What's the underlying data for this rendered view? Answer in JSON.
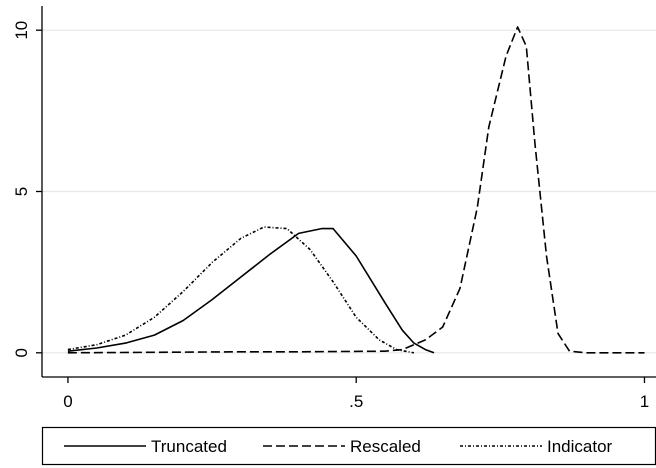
{
  "chart_data": {
    "type": "line",
    "title": "",
    "xlabel": "",
    "ylabel": "",
    "xlim": [
      -0.045,
      1.02
    ],
    "ylim": [
      -0.75,
      10.75
    ],
    "xticks": [
      {
        "value": 0,
        "label": "0"
      },
      {
        "value": 0.5,
        "label": ".5"
      },
      {
        "value": 1,
        "label": "1"
      }
    ],
    "yticks": [
      {
        "value": 0,
        "label": "0"
      },
      {
        "value": 5,
        "label": "5"
      },
      {
        "value": 10,
        "label": "10"
      }
    ],
    "grid": true,
    "legend_position": "bottom",
    "series": [
      {
        "name": "Truncated",
        "style": "solid",
        "color": "#000000",
        "points": [
          [
            0.0,
            0.05
          ],
          [
            0.05,
            0.15
          ],
          [
            0.1,
            0.3
          ],
          [
            0.15,
            0.55
          ],
          [
            0.2,
            1.0
          ],
          [
            0.25,
            1.65
          ],
          [
            0.3,
            2.35
          ],
          [
            0.35,
            3.05
          ],
          [
            0.4,
            3.7
          ],
          [
            0.44,
            3.85
          ],
          [
            0.46,
            3.85
          ],
          [
            0.5,
            3.0
          ],
          [
            0.55,
            1.55
          ],
          [
            0.58,
            0.7
          ],
          [
            0.6,
            0.3
          ],
          [
            0.62,
            0.1
          ],
          [
            0.635,
            0.0
          ]
        ]
      },
      {
        "name": "Rescaled",
        "style": "dash",
        "color": "#000000",
        "points": [
          [
            0.0,
            0.0
          ],
          [
            0.3,
            0.03
          ],
          [
            0.4,
            0.03
          ],
          [
            0.55,
            0.05
          ],
          [
            0.58,
            0.1
          ],
          [
            0.62,
            0.4
          ],
          [
            0.65,
            0.8
          ],
          [
            0.68,
            2.0
          ],
          [
            0.71,
            4.5
          ],
          [
            0.73,
            7.0
          ],
          [
            0.76,
            9.2
          ],
          [
            0.78,
            10.1
          ],
          [
            0.795,
            9.5
          ],
          [
            0.81,
            6.5
          ],
          [
            0.83,
            3.0
          ],
          [
            0.85,
            0.6
          ],
          [
            0.87,
            0.05
          ],
          [
            0.9,
            0.0
          ],
          [
            1.0,
            0.0
          ]
        ]
      },
      {
        "name": "Indicator",
        "style": "dot-dash",
        "color": "#000000",
        "points": [
          [
            0.0,
            0.1
          ],
          [
            0.05,
            0.25
          ],
          [
            0.1,
            0.55
          ],
          [
            0.15,
            1.1
          ],
          [
            0.2,
            1.9
          ],
          [
            0.25,
            2.8
          ],
          [
            0.3,
            3.55
          ],
          [
            0.34,
            3.9
          ],
          [
            0.38,
            3.85
          ],
          [
            0.42,
            3.2
          ],
          [
            0.46,
            2.2
          ],
          [
            0.5,
            1.1
          ],
          [
            0.54,
            0.4
          ],
          [
            0.57,
            0.1
          ],
          [
            0.6,
            0.0
          ]
        ]
      }
    ]
  }
}
